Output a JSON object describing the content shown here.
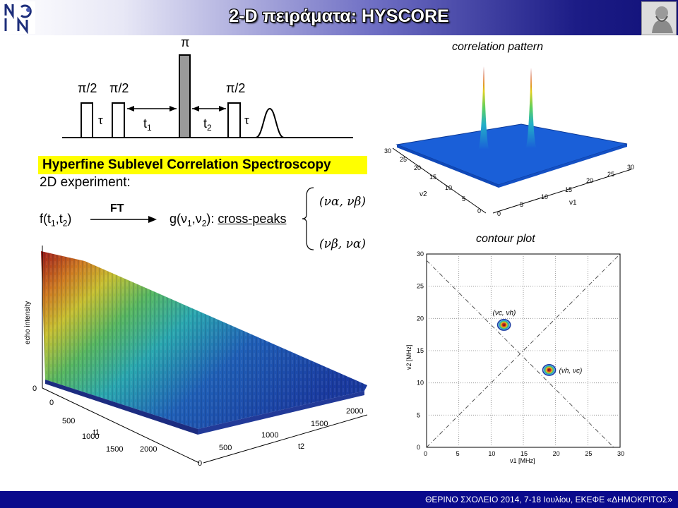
{
  "slide": {
    "title": "2-D πειράματα: HYSCORE",
    "footer": "ΘΕΡΙΝΟ ΣΧΟΛΕΙΟ 2014, 7-18 Ιουλίου, ΕΚΕΦΕ «ΔΗΜΟΚΡΙΤΟΣ»"
  },
  "pulse_sequence": {
    "pulse_labels": [
      "π/2",
      "π/2",
      "π",
      "π/2"
    ],
    "tau_label": "τ",
    "t1_label": "t",
    "t1_sub": "1",
    "t2_label": "t",
    "t2_sub": "2"
  },
  "text": {
    "heading": "Hyperfine Sublevel Correlation Spectroscopy",
    "experiment": "2D experiment:",
    "f_expr": "f(t",
    "f_sub1": "1",
    "f_mid": ",t",
    "f_sub2": "2",
    "f_end": ")",
    "ft_label": "FT",
    "g_expr": "g(ν",
    "g_sub1": "1",
    "g_mid": ",ν",
    "g_sub2": "2",
    "g_end": "): ",
    "cross_peaks": "cross-peaks",
    "peak_top": "(να, νβ)",
    "peak_bottom": "(νβ, να)"
  },
  "correlation": {
    "title": "correlation pattern",
    "axis_ticks": [
      "0",
      "5",
      "10",
      "15",
      "20",
      "25",
      "30"
    ],
    "axis_v1": "ν1",
    "axis_v2": "ν2"
  },
  "contour": {
    "title": "contour plot",
    "xlabel": "ν1 [MHz]",
    "ylabel": "ν2 [MHz]",
    "ticks": [
      "0",
      "5",
      "10",
      "15",
      "20",
      "25",
      "30"
    ],
    "peak1_label": "(νc, νh)",
    "peak2_label": "(νh, νc)"
  },
  "echo": {
    "zlabel": "echo intensity",
    "t1_ticks": [
      "0",
      "500",
      "1000",
      "1500",
      "2000"
    ],
    "t2_ticks": [
      "500",
      "1000",
      "1500",
      "2000"
    ],
    "t1_label": "t1",
    "t2_label": "t2",
    "z_zero": "0",
    "t2_zero": "0"
  },
  "chart_data": [
    {
      "type": "line",
      "title": "contour plot",
      "xlabel": "ν1 [MHz]",
      "ylabel": "ν2 [MHz]",
      "xlim": [
        0,
        30
      ],
      "ylim": [
        0,
        30
      ],
      "grid": true,
      "x": [
        12,
        19
      ],
      "y": [
        19,
        12
      ],
      "diagonals": [
        [
          [
            0,
            0
          ],
          [
            30,
            30
          ]
        ],
        [
          [
            0,
            29
          ],
          [
            29,
            0
          ]
        ]
      ]
    },
    {
      "type": "area",
      "title": "correlation pattern",
      "xlabel": "ν1",
      "ylabel": "ν2",
      "xlim": [
        0,
        30
      ],
      "ylim": [
        0,
        30
      ],
      "peaks": [
        [
          12,
          19
        ],
        [
          19,
          12
        ]
      ]
    },
    {
      "type": "area",
      "xlabel": "t1",
      "ylabel": "t2",
      "zlabel": "echo intensity",
      "xlim": [
        0,
        2000
      ],
      "ylim": [
        0,
        2000
      ]
    }
  ],
  "colors": {
    "title_bar_dark": "#101078",
    "footer": "#0a0a8c",
    "highlight": "#ffff00",
    "surface_blue": "#1a5fd8",
    "pulse_gray": "#9a9a9a"
  }
}
